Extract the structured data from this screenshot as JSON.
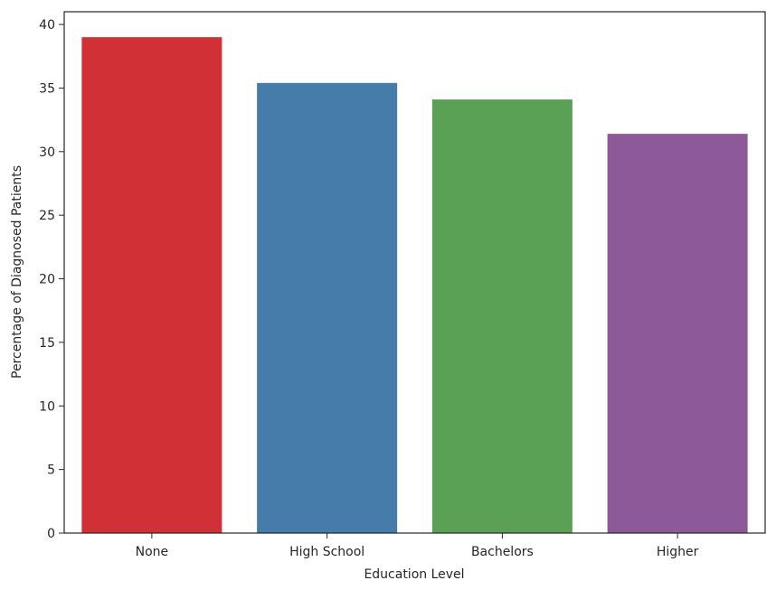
{
  "chart_data": {
    "type": "bar",
    "title": "",
    "xlabel": "Education Level",
    "ylabel": "Percentage of Diagnosed Patients",
    "categories": [
      "None",
      "High School",
      "Bachelors",
      "Higher"
    ],
    "values": [
      39.0,
      35.4,
      34.1,
      31.4
    ],
    "colors": [
      "#d03036",
      "#467caa",
      "#5aa155",
      "#8d5999"
    ],
    "ylim": [
      0,
      41
    ],
    "yticks": [
      0,
      5,
      10,
      15,
      20,
      25,
      30,
      35,
      40
    ],
    "grid": false,
    "legend": "none"
  }
}
